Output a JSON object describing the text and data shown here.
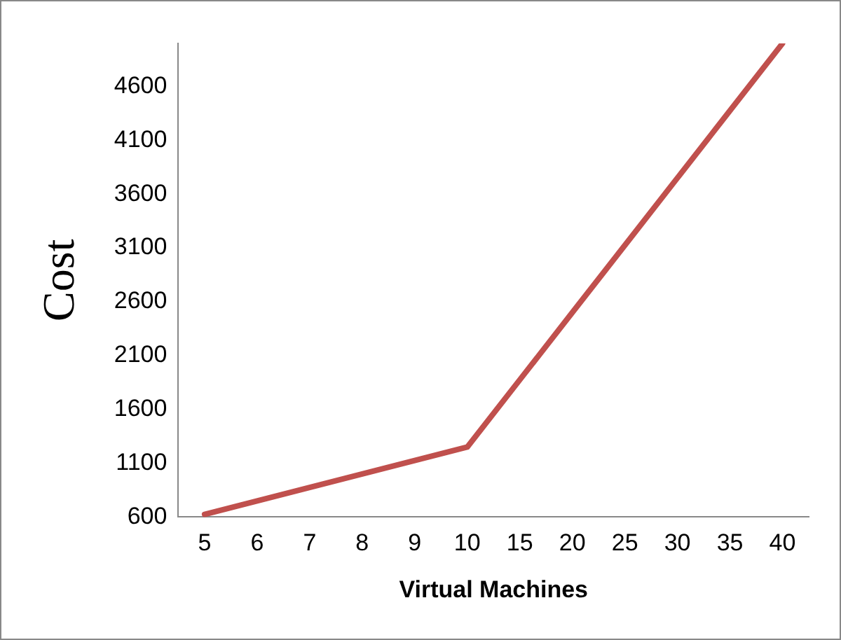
{
  "chart_data": {
    "type": "line",
    "xlabel": "Virtual Machines",
    "ylabel": "Cost",
    "categories": [
      "5",
      "6",
      "7",
      "8",
      "9",
      "10",
      "15",
      "20",
      "25",
      "30",
      "35",
      "40"
    ],
    "series": [
      {
        "color": "#c0504d",
        "values": [
          625,
          750,
          875,
          1000,
          1125,
          1250,
          1875,
          2500,
          3125,
          3750,
          4375,
          5000
        ]
      }
    ],
    "ylim": [
      600,
      5000
    ],
    "yticks": [
      600,
      1100,
      1600,
      2100,
      2600,
      3100,
      3600,
      4100,
      4600
    ],
    "grid": false,
    "legend": false,
    "marker": "none",
    "line_style": "solid"
  }
}
